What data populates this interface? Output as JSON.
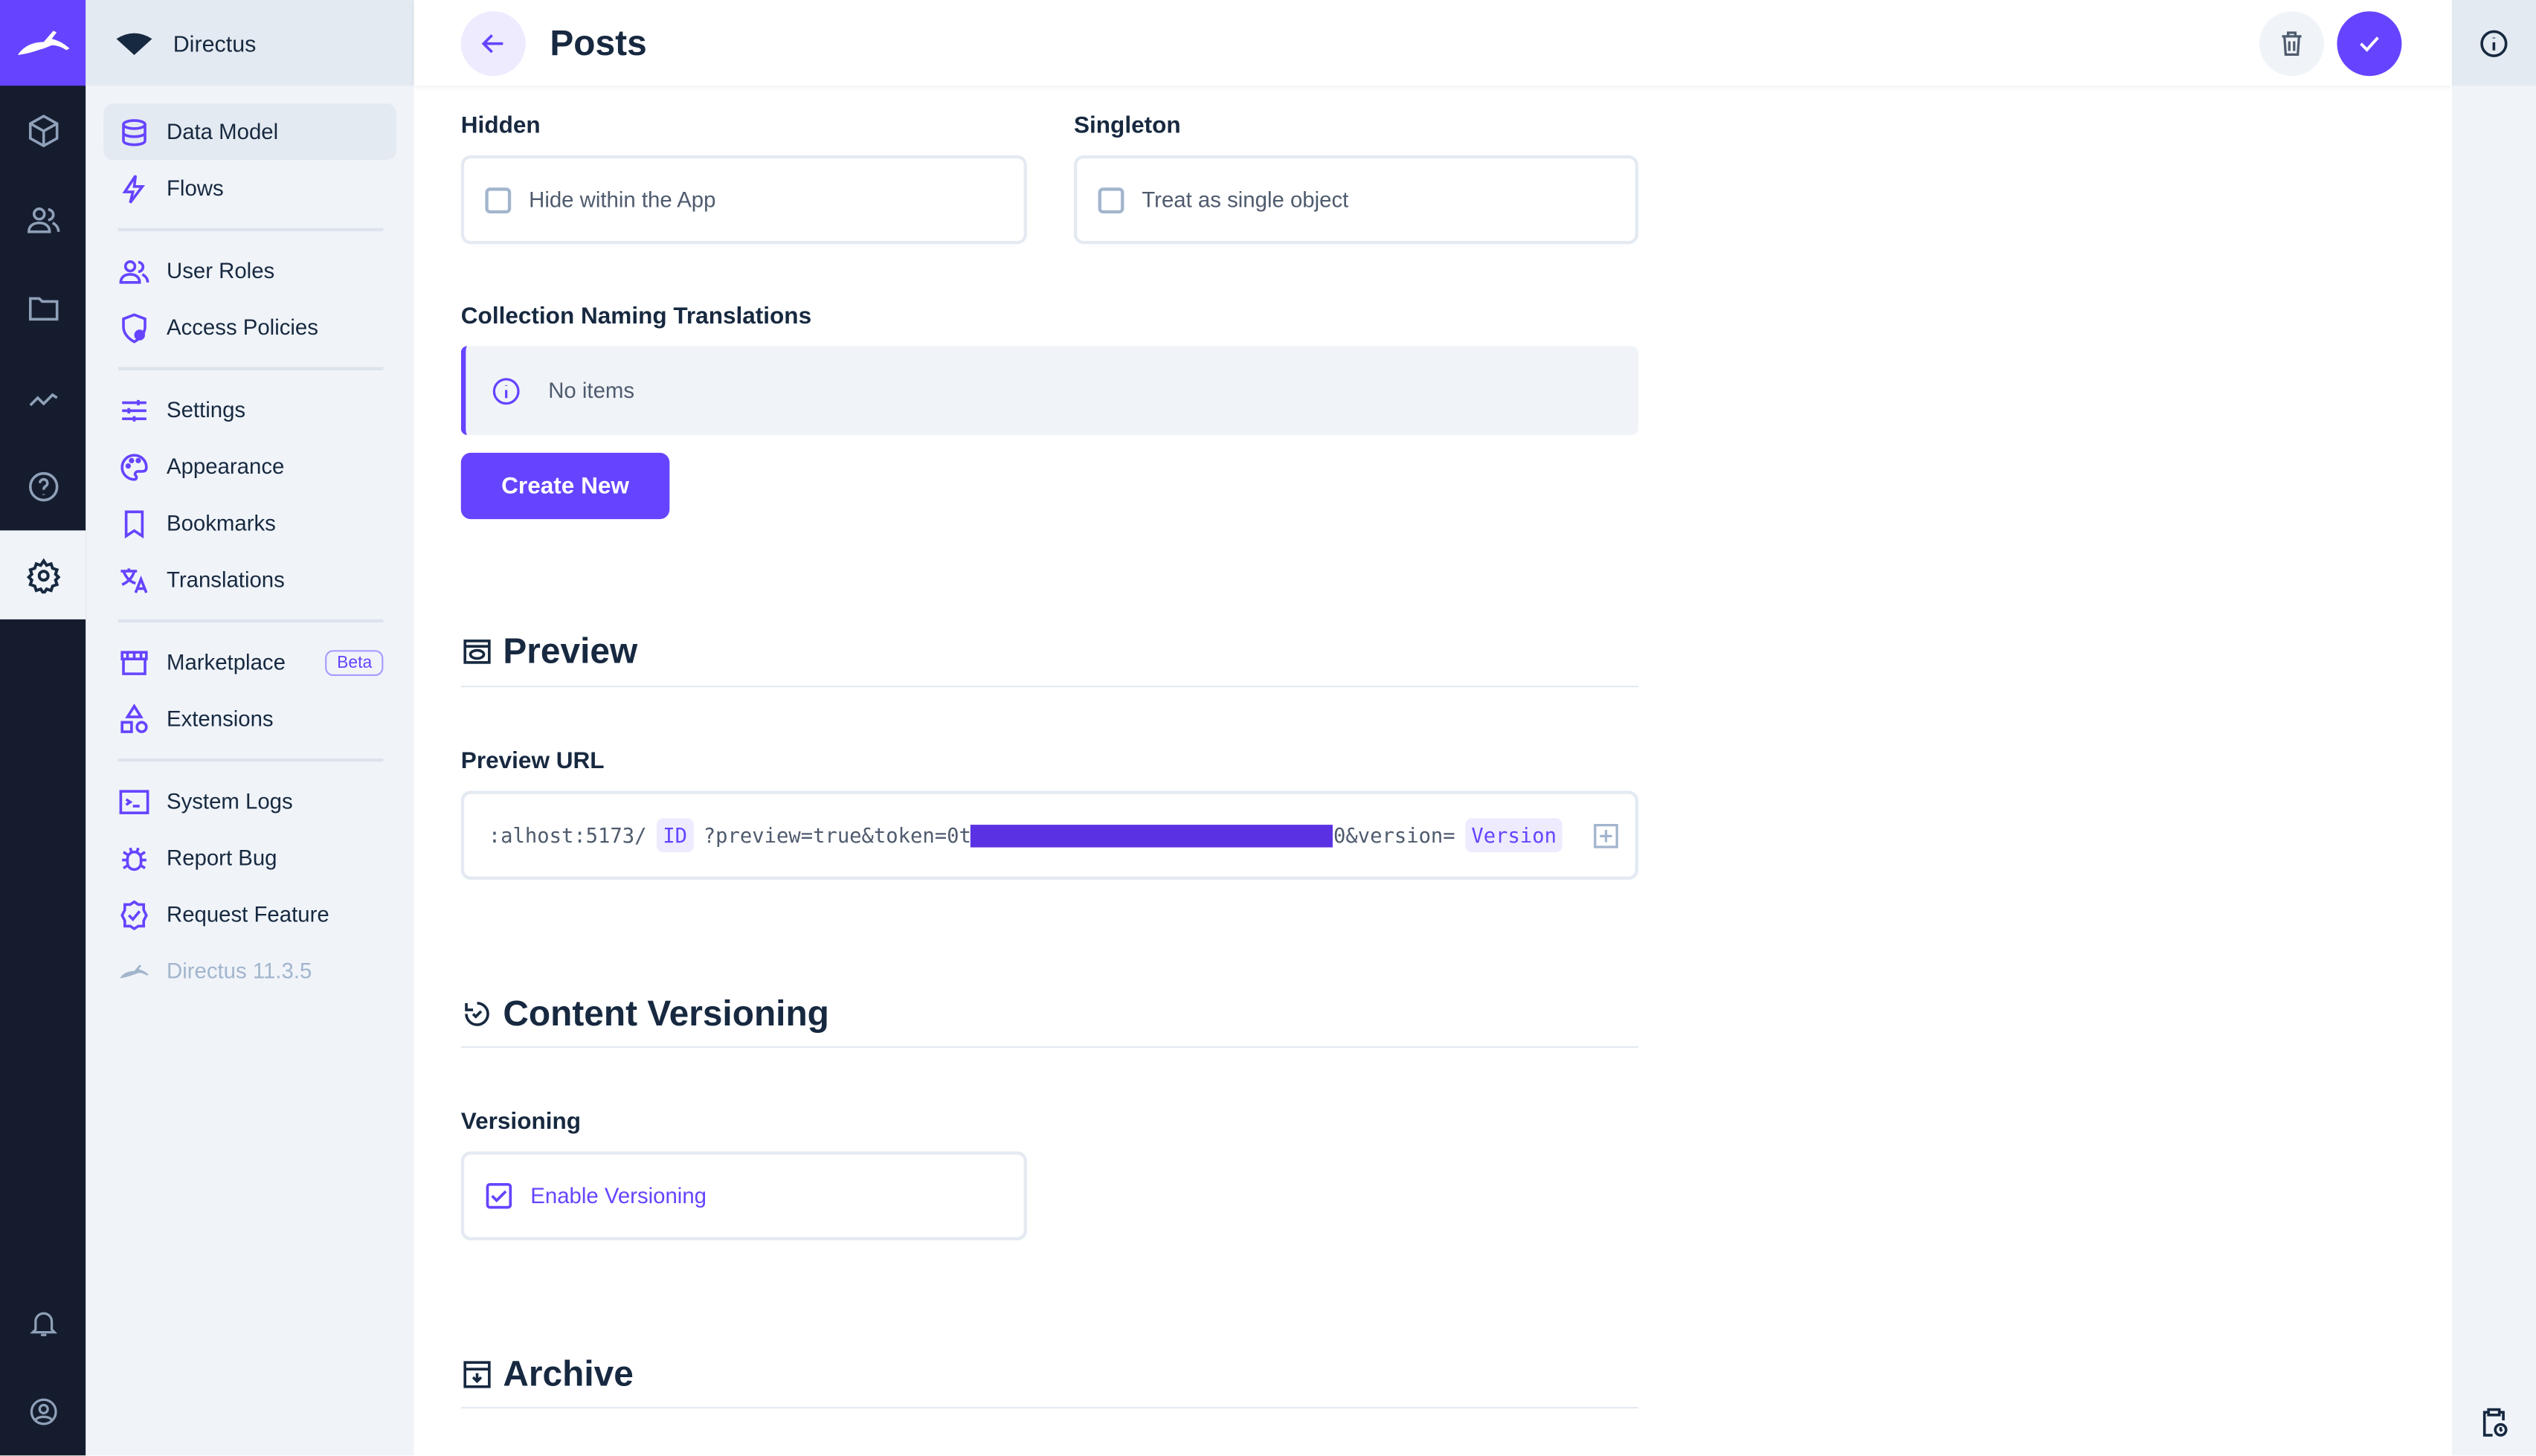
{
  "app": {
    "project_name": "Directus",
    "version_label": "Directus 11.3.5",
    "accent": "#6644ff"
  },
  "rail": {
    "items": [
      "content-icon",
      "users-icon",
      "files-icon",
      "insights-icon",
      "help-icon",
      "settings-icon"
    ],
    "bottom": [
      "notifications-icon",
      "user-icon"
    ]
  },
  "nav": {
    "items": [
      {
        "label": "Data Model"
      },
      {
        "label": "Flows"
      },
      {
        "label": "User Roles"
      },
      {
        "label": "Access Policies"
      },
      {
        "label": "Settings"
      },
      {
        "label": "Appearance"
      },
      {
        "label": "Bookmarks"
      },
      {
        "label": "Translations"
      },
      {
        "label": "Marketplace",
        "badge": "Beta"
      },
      {
        "label": "Extensions"
      },
      {
        "label": "System Logs"
      },
      {
        "label": "Report Bug"
      },
      {
        "label": "Request Feature"
      }
    ]
  },
  "header": {
    "title": "Posts"
  },
  "form": {
    "hidden": {
      "label": "Hidden",
      "checkbox": "Hide within the App",
      "checked": false
    },
    "singleton": {
      "label": "Singleton",
      "checkbox": "Treat as single object",
      "checked": false
    },
    "translations": {
      "label": "Collection Naming Translations",
      "empty": "No items",
      "create": "Create New"
    },
    "preview": {
      "heading": "Preview",
      "url_label": "Preview URL",
      "url_start": ":alhost:5173/",
      "id_chip": "ID",
      "url_mid": "?preview=true&token=0t",
      "url_end": "0&version=",
      "version_chip": "Version"
    },
    "versioning": {
      "heading": "Content Versioning",
      "label": "Versioning",
      "checkbox": "Enable Versioning",
      "checked": true
    },
    "archive": {
      "heading": "Archive"
    }
  }
}
